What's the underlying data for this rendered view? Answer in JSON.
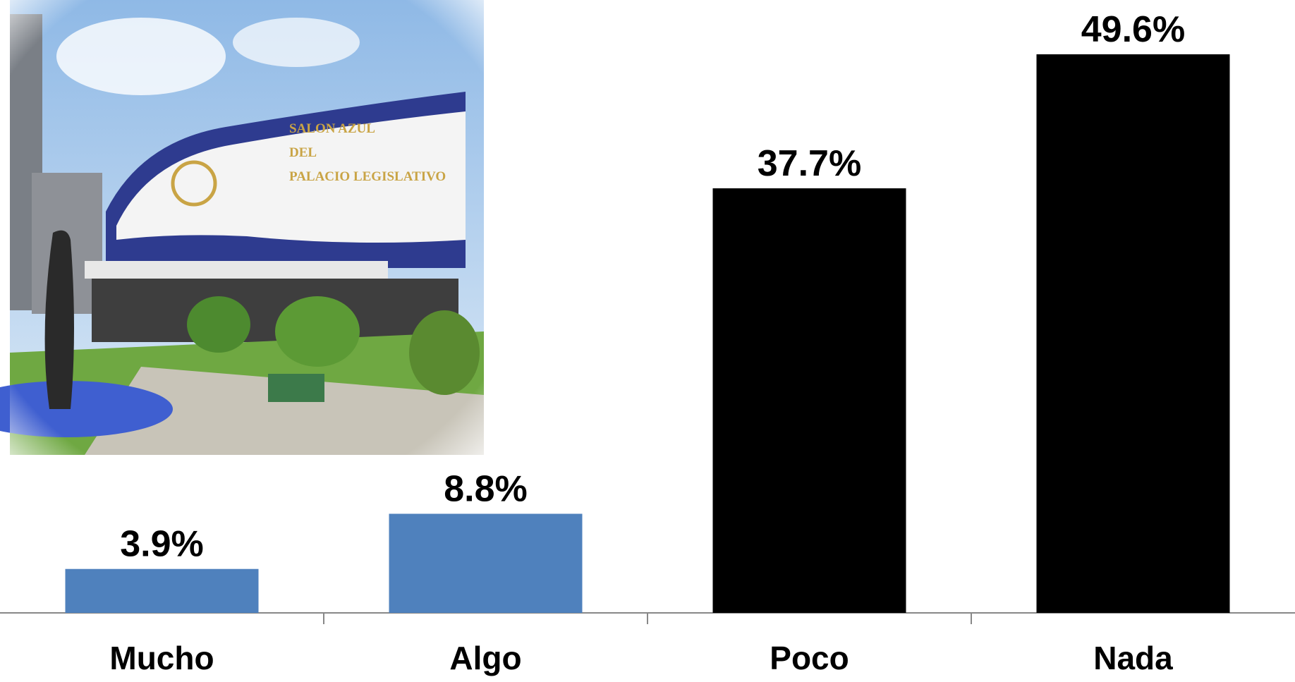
{
  "chart_data": {
    "type": "bar",
    "categories": [
      "Mucho",
      "Algo",
      "Poco",
      "Nada"
    ],
    "values": [
      3.9,
      8.8,
      37.7,
      49.6
    ],
    "value_labels": [
      "3.9%",
      "8.8%",
      "37.7%",
      "49.6%"
    ],
    "colors": [
      "#4f81bd",
      "#4f81bd",
      "#000000",
      "#000000"
    ]
  },
  "photo_sign": [
    "SALON AZUL",
    "DEL",
    "PALACIO LEGISLATIVO"
  ]
}
